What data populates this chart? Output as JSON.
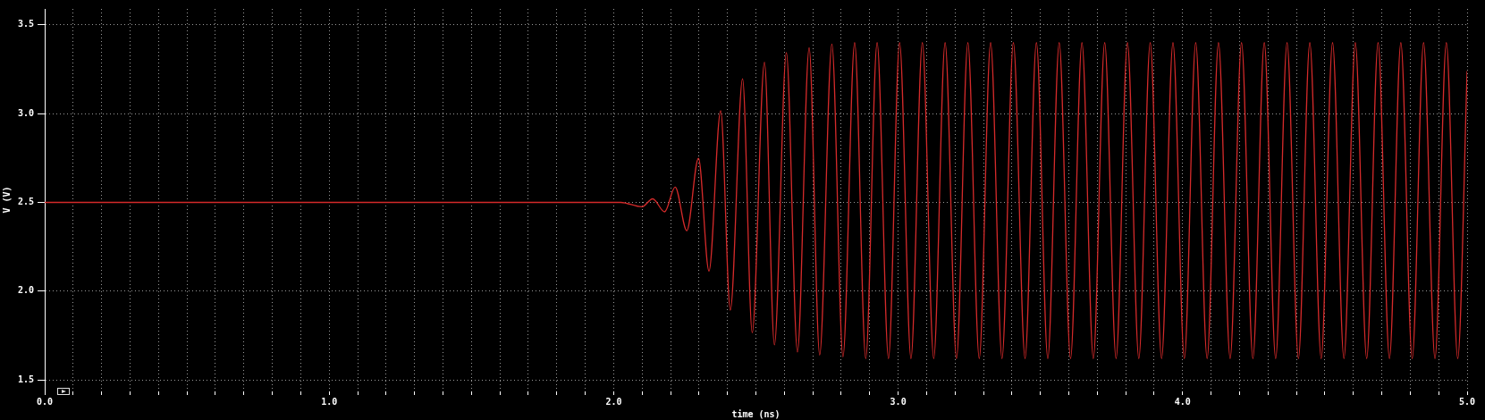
{
  "chart_data": {
    "type": "line",
    "xlabel": "time (ns)",
    "ylabel": "V (V)",
    "xlim": [
      0,
      5
    ],
    "ylim": [
      1.44,
      3.59
    ],
    "xticks": [
      {
        "value": 0,
        "label": "0.0"
      },
      {
        "value": 0.1,
        "label": null
      },
      {
        "value": 0.2,
        "label": null
      },
      {
        "value": 0.3,
        "label": null
      },
      {
        "value": 0.4,
        "label": null
      },
      {
        "value": 0.5,
        "label": null
      },
      {
        "value": 0.6,
        "label": null
      },
      {
        "value": 0.7,
        "label": null
      },
      {
        "value": 0.8,
        "label": null
      },
      {
        "value": 0.9,
        "label": null
      },
      {
        "value": 1,
        "label": "1.0"
      },
      {
        "value": 1.1,
        "label": null
      },
      {
        "value": 1.2,
        "label": null
      },
      {
        "value": 1.3,
        "label": null
      },
      {
        "value": 1.4,
        "label": null
      },
      {
        "value": 1.5,
        "label": null
      },
      {
        "value": 1.6,
        "label": null
      },
      {
        "value": 1.7,
        "label": null
      },
      {
        "value": 1.8,
        "label": null
      },
      {
        "value": 1.9,
        "label": null
      },
      {
        "value": 2,
        "label": "2.0"
      },
      {
        "value": 2.1,
        "label": null
      },
      {
        "value": 2.2,
        "label": null
      },
      {
        "value": 2.3,
        "label": null
      },
      {
        "value": 2.4,
        "label": null
      },
      {
        "value": 2.5,
        "label": null
      },
      {
        "value": 2.6,
        "label": null
      },
      {
        "value": 2.7,
        "label": null
      },
      {
        "value": 2.8,
        "label": null
      },
      {
        "value": 2.9,
        "label": null
      },
      {
        "value": 3,
        "label": "3.0"
      },
      {
        "value": 3.1,
        "label": null
      },
      {
        "value": 3.2,
        "label": null
      },
      {
        "value": 3.3,
        "label": null
      },
      {
        "value": 3.4,
        "label": null
      },
      {
        "value": 3.5,
        "label": null
      },
      {
        "value": 3.6,
        "label": null
      },
      {
        "value": 3.7,
        "label": null
      },
      {
        "value": 3.8,
        "label": null
      },
      {
        "value": 3.9,
        "label": null
      },
      {
        "value": 4,
        "label": "4.0"
      },
      {
        "value": 4.1,
        "label": null
      },
      {
        "value": 4.2,
        "label": null
      },
      {
        "value": 4.3,
        "label": null
      },
      {
        "value": 4.4,
        "label": null
      },
      {
        "value": 4.5,
        "label": null
      },
      {
        "value": 4.6,
        "label": null
      },
      {
        "value": 4.7,
        "label": null
      },
      {
        "value": 4.8,
        "label": null
      },
      {
        "value": 4.9,
        "label": null
      },
      {
        "value": 5,
        "label": "5.0"
      }
    ],
    "yticks": [
      {
        "value": 1.5,
        "label": "1.5"
      },
      {
        "value": 2,
        "label": "2.0"
      },
      {
        "value": 2.5,
        "label": "2.5"
      },
      {
        "value": 3,
        "label": "3.0"
      },
      {
        "value": 3.5,
        "label": "3.5"
      }
    ],
    "grid": true,
    "marker": "none",
    "line_style": "solid",
    "series": [
      {
        "color": "#d42a2a",
        "x": [
          0,
          2.025,
          2.099,
          2.137,
          2.179,
          2.216,
          2.257,
          2.298,
          2.335,
          2.376,
          2.41,
          2.453,
          2.487,
          2.53,
          2.565,
          2.607,
          2.646,
          2.687,
          2.724,
          2.767,
          2.806,
          2.847,
          2.886,
          2.926,
          2.966,
          3.005,
          3.045,
          3.085,
          3.125,
          3.165,
          3.205,
          3.245,
          3.285,
          3.325,
          3.365,
          3.405,
          3.446,
          3.486,
          3.526,
          3.566,
          3.606,
          3.646,
          3.686,
          3.726,
          3.766,
          3.806,
          3.846,
          3.886,
          3.926,
          3.966,
          4.006,
          4.046,
          4.086,
          4.126,
          4.167,
          4.207,
          4.247,
          4.287,
          4.327,
          4.367,
          4.407,
          4.447,
          4.487,
          4.527,
          4.567,
          4.607,
          4.647,
          4.687,
          4.727,
          4.767,
          4.807,
          4.847,
          4.887,
          4.927,
          4.967,
          5
        ],
        "values": [
          2.5,
          2.5,
          2.475,
          2.52,
          2.447,
          2.586,
          2.341,
          2.748,
          2.113,
          3.017,
          1.893,
          3.197,
          1.766,
          3.29,
          1.697,
          3.344,
          1.657,
          3.371,
          1.64,
          3.392,
          1.63,
          3.4,
          1.62,
          3.4,
          1.62,
          3.4,
          1.62,
          3.4,
          1.62,
          3.4,
          1.62,
          3.4,
          1.62,
          3.4,
          1.62,
          3.4,
          1.62,
          3.4,
          1.62,
          3.4,
          1.62,
          3.4,
          1.62,
          3.4,
          1.62,
          3.4,
          1.62,
          3.4,
          1.62,
          3.4,
          1.62,
          3.4,
          1.62,
          3.4,
          1.62,
          3.4,
          1.62,
          3.4,
          1.62,
          3.4,
          1.62,
          3.4,
          1.62,
          3.4,
          1.62,
          3.4,
          1.62,
          3.4,
          1.62,
          3.4,
          1.62,
          3.4,
          1.62,
          3.4,
          1.62,
          3.24
        ]
      }
    ]
  }
}
